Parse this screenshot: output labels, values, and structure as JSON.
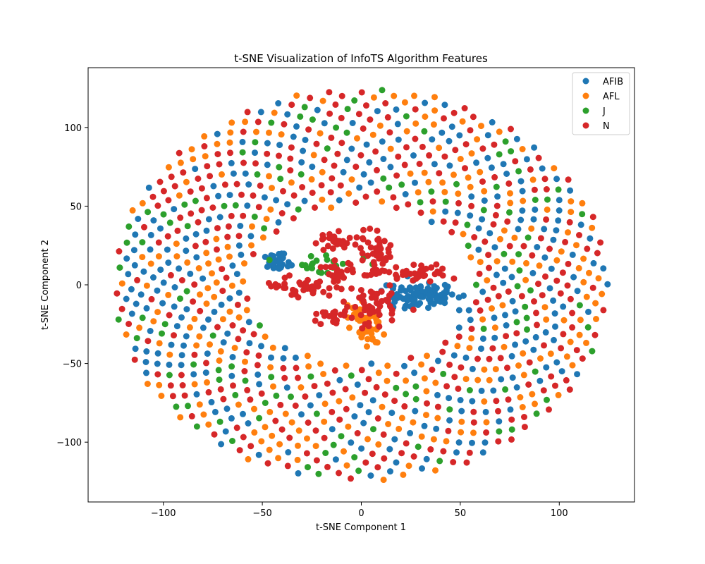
{
  "chart_data": {
    "type": "scatter",
    "title": "t-SNE Visualization of InfoTS Algorithm Features",
    "xlabel": "t-SNE Component 1",
    "ylabel": "t-SNE Component 2",
    "xlim": [
      -138,
      138
    ],
    "ylim": [
      -138,
      138
    ],
    "xticks": [
      -100,
      -50,
      0,
      50,
      100
    ],
    "yticks": [
      -100,
      -50,
      0,
      50,
      100
    ],
    "xtick_labels": [
      "−100",
      "−50",
      "0",
      "50",
      "100"
    ],
    "ytick_labels": [
      "−100",
      "−50",
      "0",
      "50",
      "100"
    ],
    "grid": false,
    "legend_position": "top-right",
    "series": [
      {
        "name": "AFIB",
        "color": "#1f77b4",
        "ring_count": 290,
        "cluster_count": 140
      },
      {
        "name": "AFL",
        "color": "#ff7f0e",
        "ring_count": 260,
        "cluster_count": 45
      },
      {
        "name": "J",
        "color": "#2ca02c",
        "ring_count": 120,
        "cluster_count": 20
      },
      {
        "name": "N",
        "color": "#d62728",
        "ring_count": 330,
        "cluster_count": 240
      }
    ],
    "ring": {
      "inner_radius_x": 58,
      "inner_radius_y": 50,
      "outer_radius": 125,
      "center": [
        0,
        0
      ]
    },
    "clusters": [
      {
        "series": "AFIB",
        "center": [
          -42,
          15
        ],
        "spread": [
          3,
          2.5
        ],
        "count": 40
      },
      {
        "series": "AFIB",
        "center": [
          30,
          -7
        ],
        "spread": [
          9,
          4
        ],
        "count": 100
      },
      {
        "series": "AFL",
        "center": [
          3,
          -25
        ],
        "spread": [
          5,
          7
        ],
        "count": 45
      },
      {
        "series": "J",
        "center": [
          -18,
          12
        ],
        "spread": [
          10,
          3
        ],
        "count": 20
      },
      {
        "series": "N",
        "center": [
          -10,
          28
        ],
        "spread": [
          7,
          3
        ],
        "count": 30
      },
      {
        "series": "N",
        "center": [
          8,
          20
        ],
        "spread": [
          4,
          7
        ],
        "count": 40
      },
      {
        "series": "N",
        "center": [
          -30,
          -1
        ],
        "spread": [
          10,
          3
        ],
        "count": 40
      },
      {
        "series": "N",
        "center": [
          -15,
          -20
        ],
        "spread": [
          4,
          2
        ],
        "count": 20
      },
      {
        "series": "N",
        "center": [
          5,
          -13
        ],
        "spread": [
          8,
          6
        ],
        "count": 50
      },
      {
        "series": "N",
        "center": [
          28,
          7
        ],
        "spread": [
          8,
          2.5
        ],
        "count": 35
      },
      {
        "series": "N",
        "center": [
          -12,
          8
        ],
        "spread": [
          6,
          3
        ],
        "count": 25
      }
    ]
  }
}
